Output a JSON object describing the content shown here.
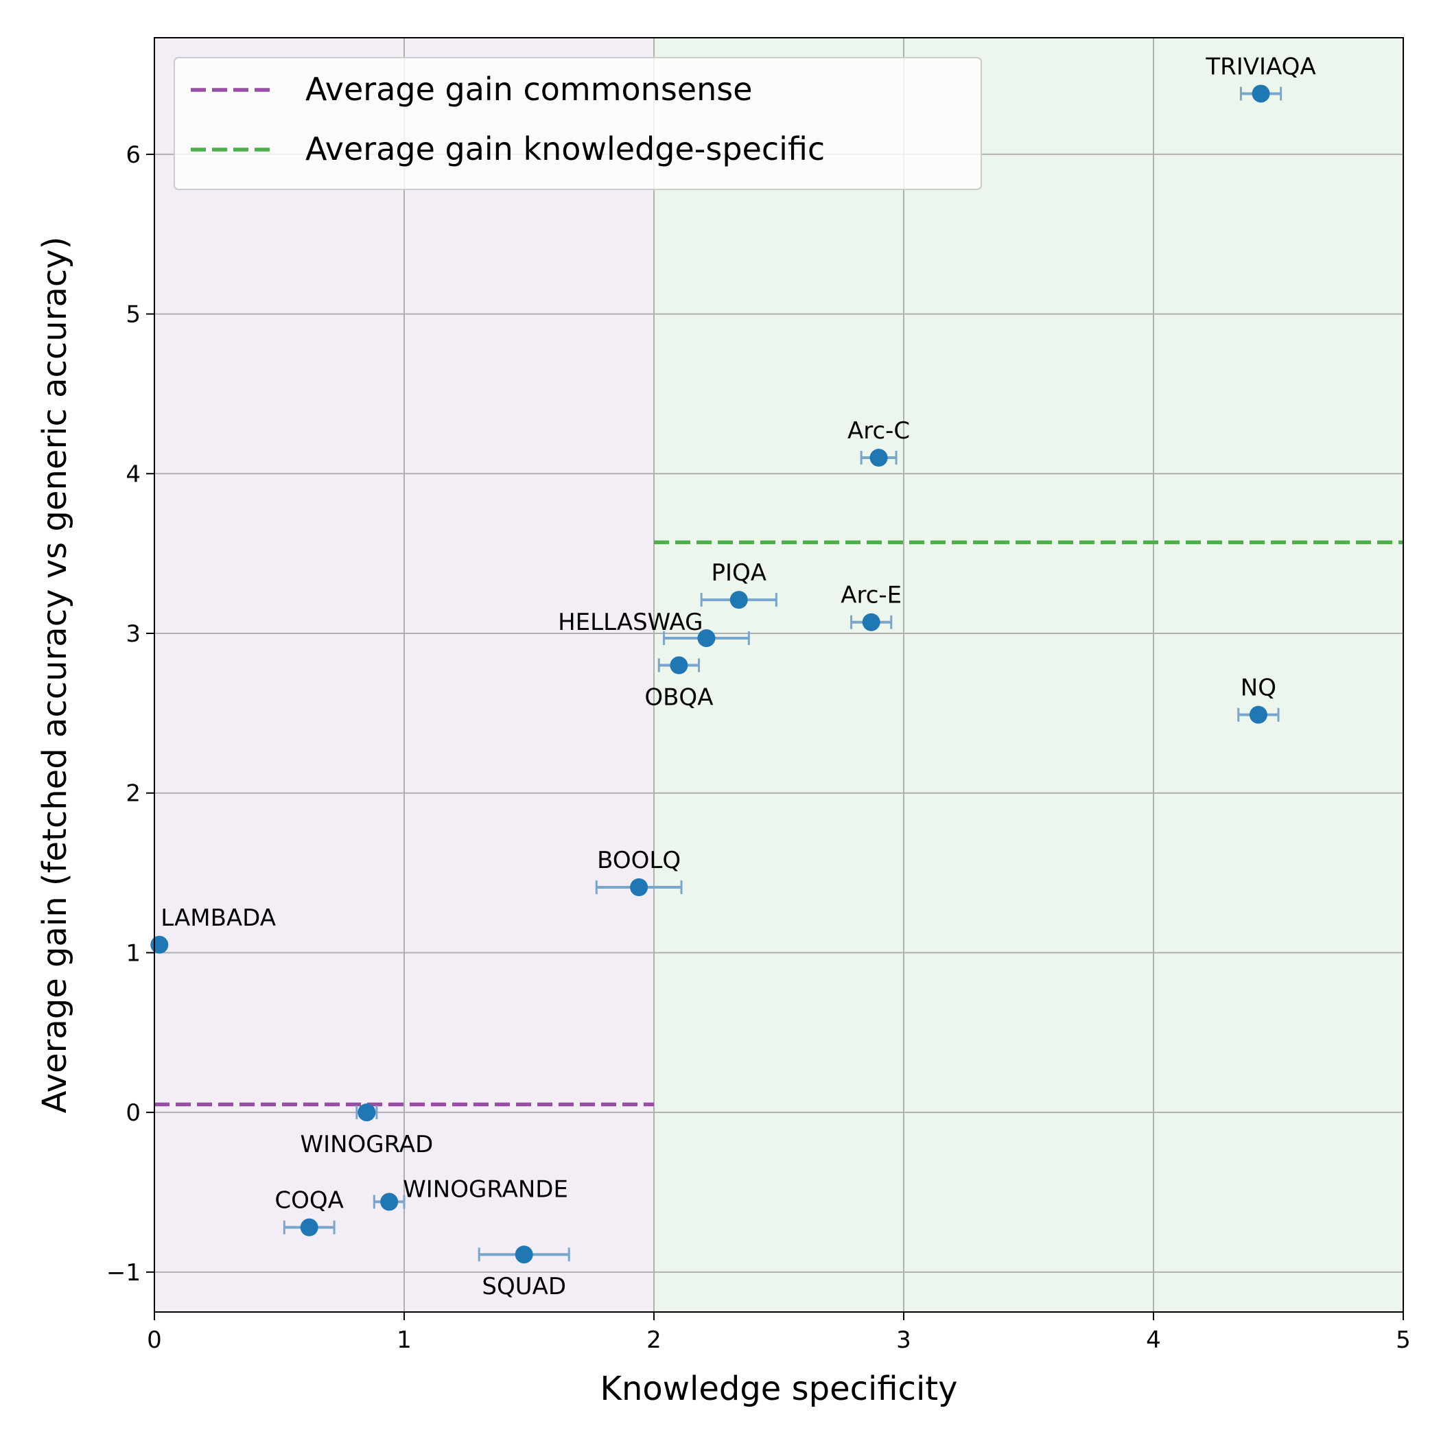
{
  "chart_data": {
    "type": "scatter",
    "xlabel": "Knowledge specificity",
    "ylabel": "Average gain (fetched accuracy vs generic accuracy)",
    "xlim": [
      0,
      5
    ],
    "ylim": [
      -1.25,
      6.73
    ],
    "xticks": [
      {
        "value": 0,
        "label": "0"
      },
      {
        "value": 1,
        "label": "1"
      },
      {
        "value": 2,
        "label": "2"
      },
      {
        "value": 3,
        "label": "3"
      },
      {
        "value": 4,
        "label": "4"
      },
      {
        "value": 5,
        "label": "5"
      }
    ],
    "yticks": [
      {
        "value": -1,
        "label": "−1"
      },
      {
        "value": 0,
        "label": "0"
      },
      {
        "value": 1,
        "label": "1"
      },
      {
        "value": 2,
        "label": "2"
      },
      {
        "value": 3,
        "label": "3"
      },
      {
        "value": 4,
        "label": "4"
      },
      {
        "value": 5,
        "label": "5"
      },
      {
        "value": 6,
        "label": "6"
      }
    ],
    "grid": true,
    "regions": [
      {
        "name": "commonsense",
        "x_range": [
          0,
          2
        ],
        "color": "#f3eef5"
      },
      {
        "name": "knowledge-specific",
        "x_range": [
          2,
          5
        ],
        "color": "#edf6ec"
      }
    ],
    "reference_lines": [
      {
        "label": "Average gain commonsense",
        "y": 0.05,
        "x_range": [
          0,
          2
        ],
        "color": "#984ea3"
      },
      {
        "label": "Average gain knowledge-specific",
        "y": 3.57,
        "x_range": [
          2,
          5
        ],
        "color": "#4daf4a"
      }
    ],
    "legend_position": "upper-left",
    "point_color": "#1f77b4",
    "points": [
      {
        "label": "TRIVIAQA",
        "x": 4.43,
        "y": 6.38,
        "xerr": 0.08,
        "label_pos": "above"
      },
      {
        "label": "Arc-C",
        "x": 2.9,
        "y": 4.1,
        "xerr": 0.07,
        "label_pos": "above"
      },
      {
        "label": "PIQA",
        "x": 2.34,
        "y": 3.21,
        "xerr": 0.15,
        "label_pos": "above"
      },
      {
        "label": "Arc-E",
        "x": 2.87,
        "y": 3.07,
        "xerr": 0.08,
        "label_pos": "above"
      },
      {
        "label": "HELLASWAG",
        "x": 2.21,
        "y": 2.97,
        "xerr": 0.17,
        "label_pos": "above-left"
      },
      {
        "label": "OBQA",
        "x": 2.1,
        "y": 2.8,
        "xerr": 0.08,
        "label_pos": "below"
      },
      {
        "label": "NQ",
        "x": 4.42,
        "y": 2.49,
        "xerr": 0.08,
        "label_pos": "above"
      },
      {
        "label": "BOOLQ",
        "x": 1.94,
        "y": 1.41,
        "xerr": 0.17,
        "label_pos": "above"
      },
      {
        "label": "LAMBADA",
        "x": 0.02,
        "y": 1.05,
        "xerr": 0,
        "label_pos": "above-right"
      },
      {
        "label": "WINOGRAD",
        "x": 0.85,
        "y": 0.0,
        "xerr": 0.04,
        "label_pos": "below"
      },
      {
        "label": "WINOGRANDE",
        "x": 0.94,
        "y": -0.56,
        "xerr": 0.06,
        "label_pos": "right"
      },
      {
        "label": "COQA",
        "x": 0.62,
        "y": -0.72,
        "xerr": 0.1,
        "label_pos": "above"
      },
      {
        "label": "SQUAD",
        "x": 1.48,
        "y": -0.89,
        "xerr": 0.18,
        "label_pos": "below"
      }
    ]
  }
}
